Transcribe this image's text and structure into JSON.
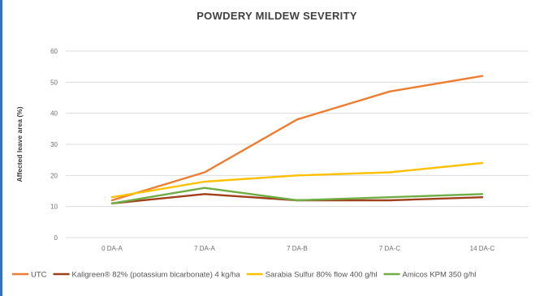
{
  "chart_data": {
    "type": "line",
    "title": "POWDERY MILDEW SEVERITY",
    "xlabel": "",
    "ylabel": "Affected leave area (%)",
    "ylim": [
      0,
      60
    ],
    "yticks": [
      "0",
      "10",
      "20",
      "30",
      "40",
      "50",
      "60"
    ],
    "categories": [
      "0 DA-A",
      "7 DA-A",
      "7 DA-B",
      "7 DA-C",
      "14 DA-C"
    ],
    "grid": true,
    "legend_position": "bottom",
    "series": [
      {
        "name": "UTC",
        "color": "#ed7d31",
        "values": [
          12,
          21,
          38,
          47,
          52
        ]
      },
      {
        "name": "Kaligreen® 82% (potassium bicarbonate) 4 kg/ha",
        "color": "#a0401b",
        "values": [
          11,
          14,
          12,
          12,
          13
        ]
      },
      {
        "name": "Sarabia Sulfur 80% flow 400 g/hl",
        "color": "#ffc000",
        "values": [
          13,
          18,
          20,
          21,
          24
        ]
      },
      {
        "name": "Amicos KPM 350 g/hl",
        "color": "#70ad47",
        "values": [
          11,
          16,
          12,
          13,
          14
        ]
      }
    ]
  }
}
